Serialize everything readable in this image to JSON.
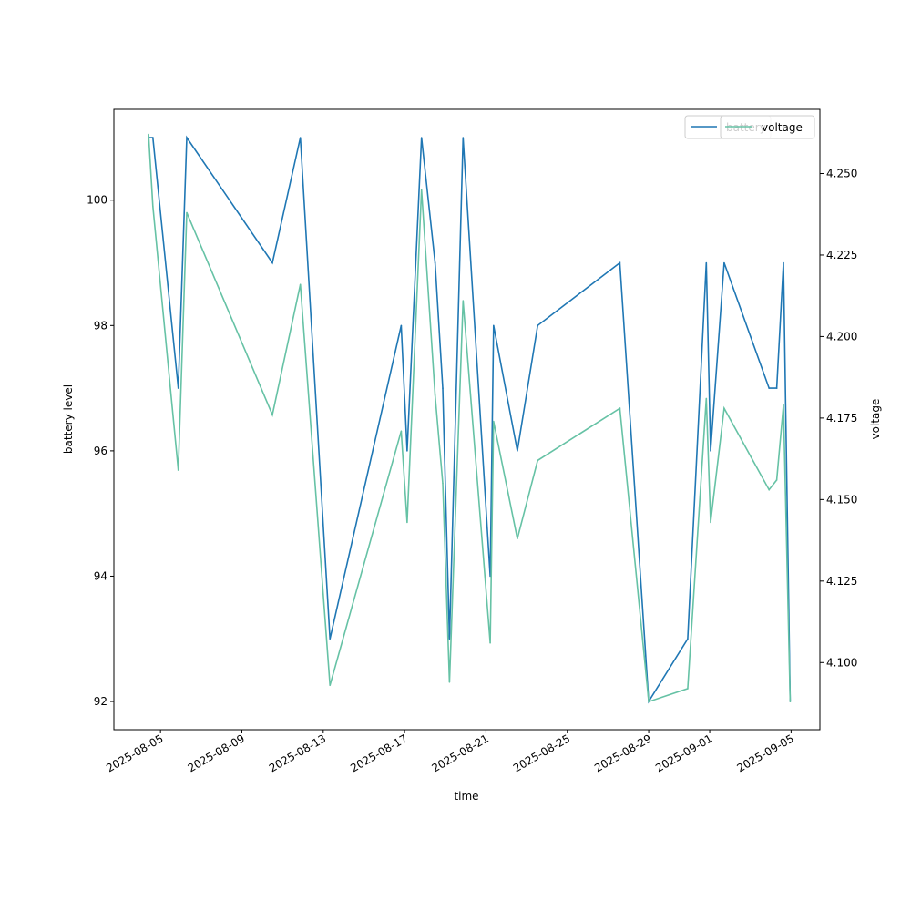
{
  "chart_data": {
    "type": "line",
    "xlabel": "time",
    "ylabel_left": "battery level",
    "ylabel_right": "voltage",
    "x_ticks": [
      "2025-08-05",
      "2025-08-09",
      "2025-08-13",
      "2025-08-17",
      "2025-08-21",
      "2025-08-25",
      "2025-08-29",
      "2025-09-01",
      "2025-09-05"
    ],
    "x_range": [
      "2025-08-02T17:00",
      "2025-09-06T10:00"
    ],
    "left_ticks": [
      "92",
      "94",
      "96",
      "98",
      "100"
    ],
    "left_range": [
      91.55,
      101.45
    ],
    "right_ticks": [
      "4.100",
      "4.125",
      "4.150",
      "4.175",
      "4.200",
      "4.225",
      "4.250"
    ],
    "right_range": [
      4.0794,
      4.2697
    ],
    "legend": {
      "placement": "top-right"
    },
    "series": [
      {
        "name": "battery",
        "axis": "left",
        "color": "#1f77b4",
        "points": [
          [
            "2025-08-04T10:00",
            101
          ],
          [
            "2025-08-04T15:00",
            101
          ],
          [
            "2025-08-05T21:00",
            97
          ],
          [
            "2025-08-06T07:00",
            101
          ],
          [
            "2025-08-10T12:00",
            99
          ],
          [
            "2025-08-11T21:00",
            101
          ],
          [
            "2025-08-13T08:00",
            93
          ],
          [
            "2025-08-16T20:00",
            98
          ],
          [
            "2025-08-17T03:00",
            96
          ],
          [
            "2025-08-17T20:00",
            101
          ],
          [
            "2025-08-18T12:00",
            99
          ],
          [
            "2025-08-18T21:00",
            97
          ],
          [
            "2025-08-19T05:00",
            93
          ],
          [
            "2025-08-19T21:00",
            101
          ],
          [
            "2025-08-21T05:00",
            94
          ],
          [
            "2025-08-21T09:00",
            98
          ],
          [
            "2025-08-22T13:00",
            96
          ],
          [
            "2025-08-23T13:00",
            98
          ],
          [
            "2025-08-27T14:00",
            99
          ],
          [
            "2025-08-29T00:00",
            92
          ],
          [
            "2025-08-30T22:00",
            93
          ],
          [
            "2025-08-31T20:00",
            99
          ],
          [
            "2025-09-01T01:00",
            96
          ],
          [
            "2025-09-01T17:00",
            99
          ],
          [
            "2025-09-03T22:00",
            97
          ],
          [
            "2025-09-04T07:00",
            97
          ],
          [
            "2025-09-04T15:00",
            99
          ],
          [
            "2025-09-04T23:00",
            92
          ]
        ]
      },
      {
        "name": "voltage",
        "axis": "right",
        "color": "#66c2a5",
        "points": [
          [
            "2025-08-04T10:00",
            4.262
          ],
          [
            "2025-08-04T15:00",
            4.24
          ],
          [
            "2025-08-05T21:00",
            4.159
          ],
          [
            "2025-08-06T07:00",
            4.238
          ],
          [
            "2025-08-10T12:00",
            4.176
          ],
          [
            "2025-08-11T21:00",
            4.216
          ],
          [
            "2025-08-13T08:00",
            4.093
          ],
          [
            "2025-08-16T20:00",
            4.171
          ],
          [
            "2025-08-17T03:00",
            4.143
          ],
          [
            "2025-08-17T20:00",
            4.245
          ],
          [
            "2025-08-18T12:00",
            4.182
          ],
          [
            "2025-08-18T21:00",
            4.155
          ],
          [
            "2025-08-19T05:00",
            4.094
          ],
          [
            "2025-08-19T21:00",
            4.211
          ],
          [
            "2025-08-21T05:00",
            4.106
          ],
          [
            "2025-08-21T09:00",
            4.174
          ],
          [
            "2025-08-22T13:00",
            4.138
          ],
          [
            "2025-08-23T13:00",
            4.162
          ],
          [
            "2025-08-27T14:00",
            4.178
          ],
          [
            "2025-08-29T00:00",
            4.088
          ],
          [
            "2025-08-30T22:00",
            4.092
          ],
          [
            "2025-08-31T20:00",
            4.181
          ],
          [
            "2025-09-01T01:00",
            4.143
          ],
          [
            "2025-09-01T17:00",
            4.178
          ],
          [
            "2025-09-03T22:00",
            4.153
          ],
          [
            "2025-09-04T07:00",
            4.156
          ],
          [
            "2025-09-04T15:00",
            4.179
          ],
          [
            "2025-09-04T23:00",
            4.088
          ]
        ]
      }
    ]
  }
}
